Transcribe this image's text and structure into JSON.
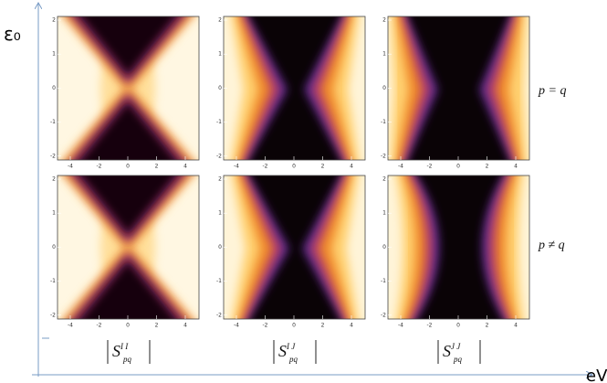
{
  "axes": {
    "y_label": "ε₀",
    "x_label": "eV"
  },
  "rows": [
    {
      "label": "p = q"
    },
    {
      "label": "p ≠ q"
    }
  ],
  "columns": [
    {
      "symbol": "S",
      "sup": "I I",
      "sub": "pq"
    },
    {
      "symbol": "S",
      "sup": "I J",
      "sub": "pq"
    },
    {
      "symbol": "S",
      "sup": "J J",
      "sub": "pq"
    }
  ],
  "panel_ticks": {
    "x": [
      "-4",
      "-2",
      "0",
      "2",
      "4"
    ],
    "y": [
      "2",
      "1",
      "0",
      "-1",
      "-2"
    ]
  }
}
